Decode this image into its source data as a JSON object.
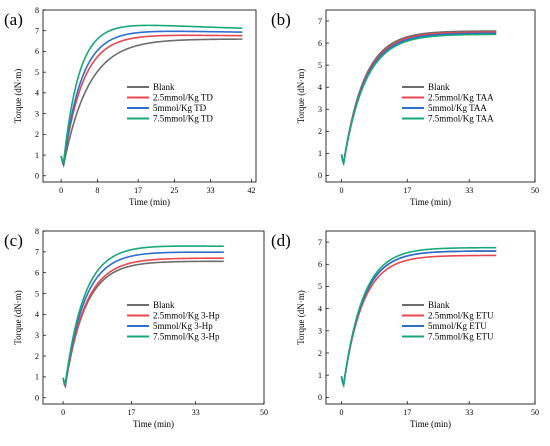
{
  "chart_data": [
    {
      "type": "line",
      "panel_label": "(a)",
      "xlabel": "Time (min)",
      "ylabel": "Torque (dN·m)",
      "xlim": [
        -4,
        43
      ],
      "ylim": [
        -0.3,
        8
      ],
      "xticks": [
        0,
        8,
        17,
        25,
        33,
        42
      ],
      "yticks": [
        0,
        1,
        2,
        3,
        4,
        5,
        6,
        7,
        8
      ],
      "legend_position": "center-right",
      "series": [
        {
          "name": "Blank",
          "color": "#6d6d6d",
          "t_end": 40,
          "dip": 0.45,
          "plateau": 6.6,
          "tau": 5.5,
          "peak": 0
        },
        {
          "name": "2.5mmol/Kg TD",
          "color": "#e8484d",
          "t_end": 40,
          "dip": 0.5,
          "plateau": 6.7,
          "tau": 4.2,
          "peak": 0.1
        },
        {
          "name": "5mmol/Kg TD",
          "color": "#2e6fce",
          "t_end": 40,
          "dip": 0.5,
          "plateau": 6.85,
          "tau": 3.9,
          "peak": 0.15
        },
        {
          "name": "7.5mmol/Kg TD",
          "color": "#18a878",
          "t_end": 40,
          "dip": 0.55,
          "plateau": 7.0,
          "tau": 3.3,
          "peak": 0.3
        }
      ]
    },
    {
      "type": "line",
      "panel_label": "(b)",
      "xlabel": "Time (min)",
      "ylabel": "Torque (dN·m)",
      "xlim": [
        -4,
        50
      ],
      "ylim": [
        -0.3,
        7.5
      ],
      "xticks": [
        0,
        17,
        33,
        50
      ],
      "yticks": [
        0,
        1,
        2,
        3,
        4,
        5,
        6,
        7
      ],
      "legend_position": "center-right",
      "series": [
        {
          "name": "Blank",
          "color": "#6d6d6d",
          "t_end": 40,
          "dip": 0.5,
          "plateau": 6.55,
          "tau": 5.3,
          "peak": 0
        },
        {
          "name": "2.5mmol/Kg TAA",
          "color": "#e8484d",
          "t_end": 40,
          "dip": 0.5,
          "plateau": 6.5,
          "tau": 5.4,
          "peak": 0
        },
        {
          "name": "5mmol/Kg TAA",
          "color": "#2e6fce",
          "t_end": 40,
          "dip": 0.5,
          "plateau": 6.45,
          "tau": 5.5,
          "peak": 0
        },
        {
          "name": "7.5mmol/Kg TAA",
          "color": "#18a878",
          "t_end": 40,
          "dip": 0.5,
          "plateau": 6.4,
          "tau": 5.6,
          "peak": 0
        }
      ]
    },
    {
      "type": "line",
      "panel_label": "(c)",
      "xlabel": "Time (min)",
      "ylabel": "Torque (dN·m)",
      "xlim": [
        -5,
        50
      ],
      "ylim": [
        -0.3,
        8
      ],
      "xticks": [
        0,
        17,
        33,
        50
      ],
      "yticks": [
        0,
        1,
        2,
        3,
        4,
        5,
        6,
        7,
        8
      ],
      "legend_position": "center-right",
      "series": [
        {
          "name": "Blank",
          "color": "#6d6d6d",
          "t_end": 40,
          "dip": 0.5,
          "plateau": 6.55,
          "tau": 5.0,
          "peak": 0
        },
        {
          "name": "2.5mmol/Kg 3-Hp",
          "color": "#e8484d",
          "t_end": 40,
          "dip": 0.5,
          "plateau": 6.7,
          "tau": 5.0,
          "peak": 0
        },
        {
          "name": "5mmol/Kg 3-Hp",
          "color": "#2e6fce",
          "t_end": 40,
          "dip": 0.55,
          "plateau": 6.95,
          "tau": 4.8,
          "peak": 0.05
        },
        {
          "name": "7.5mmol/Kg 3-Hp",
          "color": "#18a878",
          "t_end": 40,
          "dip": 0.6,
          "plateau": 7.2,
          "tau": 4.7,
          "peak": 0.1
        }
      ]
    },
    {
      "type": "line",
      "panel_label": "(d)",
      "xlabel": "Time (min)",
      "ylabel": "Torque (dN·m)",
      "xlim": [
        -4,
        50
      ],
      "ylim": [
        -0.3,
        7.5
      ],
      "xticks": [
        0,
        17,
        33,
        50
      ],
      "yticks": [
        0,
        1,
        2,
        3,
        4,
        5,
        6,
        7
      ],
      "legend_position": "center-right",
      "series": [
        {
          "name": "Blank",
          "color": "#6d6d6d",
          "t_end": 40,
          "dip": 0.5,
          "plateau": 6.6,
          "tau": 5.0,
          "peak": 0
        },
        {
          "name": "2.5mmol/Kg ETU",
          "color": "#e8484d",
          "t_end": 40,
          "dip": 0.5,
          "plateau": 6.4,
          "tau": 5.0,
          "peak": 0
        },
        {
          "name": "5mmol/Kg ETU",
          "color": "#2e6fce",
          "t_end": 40,
          "dip": 0.5,
          "plateau": 6.6,
          "tau": 5.0,
          "peak": 0
        },
        {
          "name": "7.5mmol/Kg ETU",
          "color": "#18a878",
          "t_end": 40,
          "dip": 0.5,
          "plateau": 6.75,
          "tau": 5.0,
          "peak": 0
        }
      ]
    }
  ]
}
